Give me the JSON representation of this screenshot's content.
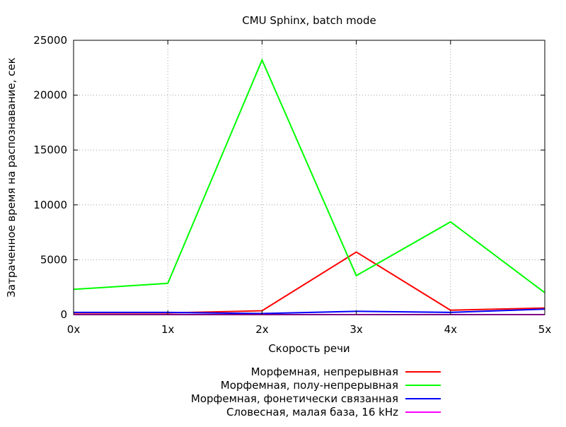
{
  "chart_data": {
    "type": "line",
    "title": "CMU Sphinx, batch mode",
    "xlabel": "Скорость речи",
    "ylabel": "Затраченное время на распознавание, сек",
    "categories": [
      "0x",
      "1x",
      "2x",
      "3x",
      "4x",
      "5x"
    ],
    "ylim": [
      0,
      25000
    ],
    "yticks": [
      "0",
      "5000",
      "10000",
      "15000",
      "20000",
      "25000"
    ],
    "grid": true,
    "legend_position": "bottom",
    "series": [
      {
        "name": "Морфемная, непрерывная",
        "color": "#ff0000",
        "values": [
          150,
          150,
          350,
          5700,
          400,
          600
        ]
      },
      {
        "name": "Морфемная, полу-непрерывная",
        "color": "#00ff00",
        "values": [
          2300,
          2850,
          23200,
          3550,
          8450,
          2000
        ]
      },
      {
        "name": "Морфемная, фонетически связанная",
        "color": "#0000ff",
        "values": [
          200,
          200,
          100,
          300,
          200,
          500
        ]
      },
      {
        "name": "Словесная, малая база, 16 kHz",
        "color": "#ff00ff",
        "values": [
          0,
          0,
          0,
          0,
          0,
          0
        ]
      }
    ]
  }
}
